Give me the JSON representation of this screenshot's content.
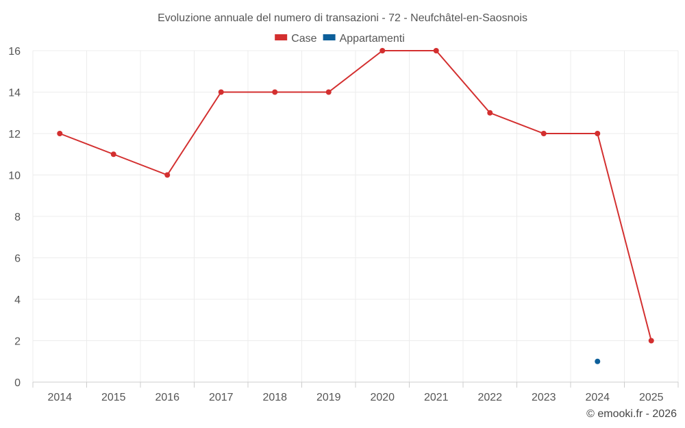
{
  "chart_data": {
    "type": "line",
    "title": "Evoluzione annuale del numero di transazioni - 72 - Neufchâtel-en-Saosnois",
    "categories": [
      "2014",
      "2015",
      "2016",
      "2017",
      "2018",
      "2019",
      "2020",
      "2021",
      "2022",
      "2023",
      "2024",
      "2025"
    ],
    "series": [
      {
        "name": "Case",
        "color": "#d32f2f",
        "values": [
          12,
          11,
          10,
          14,
          14,
          14,
          16,
          16,
          13,
          12,
          12,
          2
        ]
      },
      {
        "name": "Appartamenti",
        "color": "#0d5f9a",
        "values": [
          null,
          null,
          null,
          null,
          null,
          null,
          null,
          null,
          null,
          null,
          1,
          null
        ]
      }
    ],
    "yticks": [
      0,
      2,
      4,
      6,
      8,
      10,
      12,
      14,
      16
    ],
    "ylim": [
      0,
      16
    ],
    "grid": true,
    "legend_position": "top-center"
  },
  "credit": "© emooki.fr - 2026"
}
